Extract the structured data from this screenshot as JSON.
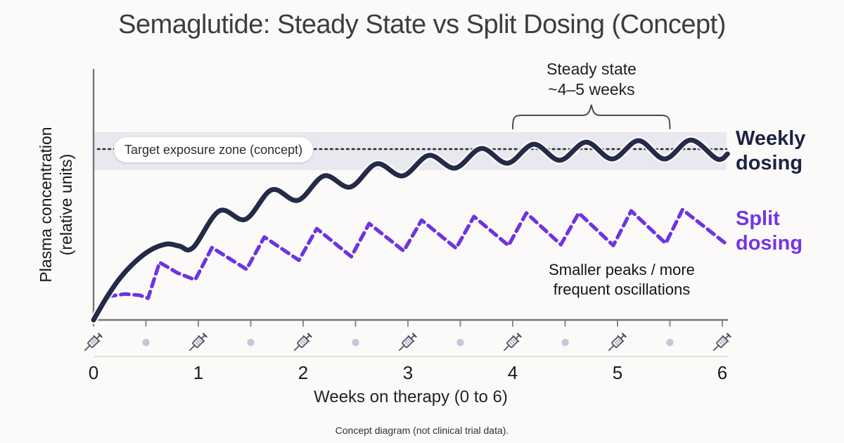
{
  "title": "Semaglutide: Steady State vs Split Dosing (Concept)",
  "footer": "Concept diagram (not clinical trial data).",
  "axes": {
    "y_label_line1": "Plasma concentration",
    "y_label_line2": "(relative units)",
    "x_label": "Weeks on therapy (0 to 6)",
    "x_ticks": [
      "0",
      "1",
      "2",
      "3",
      "4",
      "5",
      "6"
    ]
  },
  "annotations": {
    "steady_state_line1": "Steady state",
    "steady_state_line2": "~4–5 weeks",
    "target_zone_label": "Target exposure zone (concept)",
    "oscillation_line1": "Smaller peaks / more",
    "oscillation_line2": "frequent oscillations"
  },
  "legend": {
    "weekly_line1": "Weekly",
    "weekly_line2": "dosing",
    "split_line1": "Split",
    "split_line2": "dosing"
  },
  "colors": {
    "background": "#fbfaf8",
    "weekly_curve": "#252a49",
    "split_curve": "#6d34e2",
    "split_label": "#7435e6",
    "target_band": "#e9e8ef",
    "dotted_line": "#2b2b33",
    "axis": "#75757e",
    "minor_tick": "#8b8b94",
    "icon_row_line": "#ddd9d4",
    "dose_dot": "#c8c5da",
    "syringe_outline": "#4e4e5a",
    "syringe_fill": "#f0eef8",
    "brace": "#474b57"
  },
  "chart_data": {
    "type": "line",
    "title": "Semaglutide: Steady State vs Split Dosing (Concept)",
    "xlabel": "Weeks on therapy (0 to 6)",
    "ylabel": "Plasma concentration (relative units)",
    "x_range": [
      0,
      6
    ],
    "x_major_ticks": [
      0,
      1,
      2,
      3,
      4,
      5,
      6
    ],
    "x_minor_tick_step": 0.5,
    "y_range_relative_units": [
      0,
      1
    ],
    "grid": false,
    "legend_position": "right-of-curves",
    "target_zone": {
      "label": "Target exposure zone (concept)",
      "top": 0.89,
      "bottom": 0.71,
      "dotted_line": 0.81
    },
    "steady_state_span_weeks": [
      4.0,
      5.5
    ],
    "dose_markers": {
      "syringe_weeks": [
        0,
        1,
        2,
        3,
        4,
        5,
        6
      ],
      "dot_weeks": [
        0.5,
        1.5,
        2.5,
        3.5,
        4.5,
        5.5
      ]
    },
    "series": [
      {
        "name": "Weekly dosing",
        "style": "solid",
        "color": "#252a49",
        "points": [
          [
            0,
            0
          ],
          [
            0.12,
            0.103
          ],
          [
            0.25,
            0.197
          ],
          [
            0.4,
            0.277
          ],
          [
            0.55,
            0.333
          ],
          [
            0.7,
            0.36
          ],
          [
            0.82,
            0.35
          ],
          [
            0.95,
            0.343
          ],
          [
            1.2,
            0.517
          ],
          [
            1.45,
            0.477
          ],
          [
            1.7,
            0.617
          ],
          [
            1.95,
            0.567
          ],
          [
            2.2,
            0.683
          ],
          [
            2.45,
            0.63
          ],
          [
            2.7,
            0.74
          ],
          [
            2.95,
            0.683
          ],
          [
            3.2,
            0.78
          ],
          [
            3.45,
            0.72
          ],
          [
            3.7,
            0.813
          ],
          [
            3.95,
            0.743
          ],
          [
            4.2,
            0.833
          ],
          [
            4.45,
            0.757
          ],
          [
            4.7,
            0.843
          ],
          [
            4.95,
            0.763
          ],
          [
            5.2,
            0.85
          ],
          [
            5.45,
            0.763
          ],
          [
            5.7,
            0.853
          ],
          [
            5.95,
            0.763
          ],
          [
            6.05,
            0.787
          ]
        ]
      },
      {
        "name": "Split dosing",
        "style": "dashed",
        "color": "#6d34e2",
        "points": [
          [
            0,
            0
          ],
          [
            0.08,
            0.073
          ],
          [
            0.16,
            0.113
          ],
          [
            0.3,
            0.123
          ],
          [
            0.44,
            0.117
          ],
          [
            0.52,
            0.103
          ],
          [
            0.63,
            0.273
          ],
          [
            0.8,
            0.223
          ],
          [
            0.97,
            0.19
          ],
          [
            1.13,
            0.343
          ],
          [
            1.46,
            0.24
          ],
          [
            1.63,
            0.393
          ],
          [
            1.96,
            0.283
          ],
          [
            2.13,
            0.433
          ],
          [
            2.46,
            0.3
          ],
          [
            2.63,
            0.457
          ],
          [
            2.96,
            0.327
          ],
          [
            3.13,
            0.473
          ],
          [
            3.46,
            0.34
          ],
          [
            3.63,
            0.49
          ],
          [
            3.96,
            0.353
          ],
          [
            4.13,
            0.507
          ],
          [
            4.46,
            0.357
          ],
          [
            4.63,
            0.507
          ],
          [
            4.96,
            0.353
          ],
          [
            5.13,
            0.517
          ],
          [
            5.46,
            0.363
          ],
          [
            5.62,
            0.523
          ],
          [
            6.02,
            0.367
          ]
        ]
      }
    ]
  }
}
